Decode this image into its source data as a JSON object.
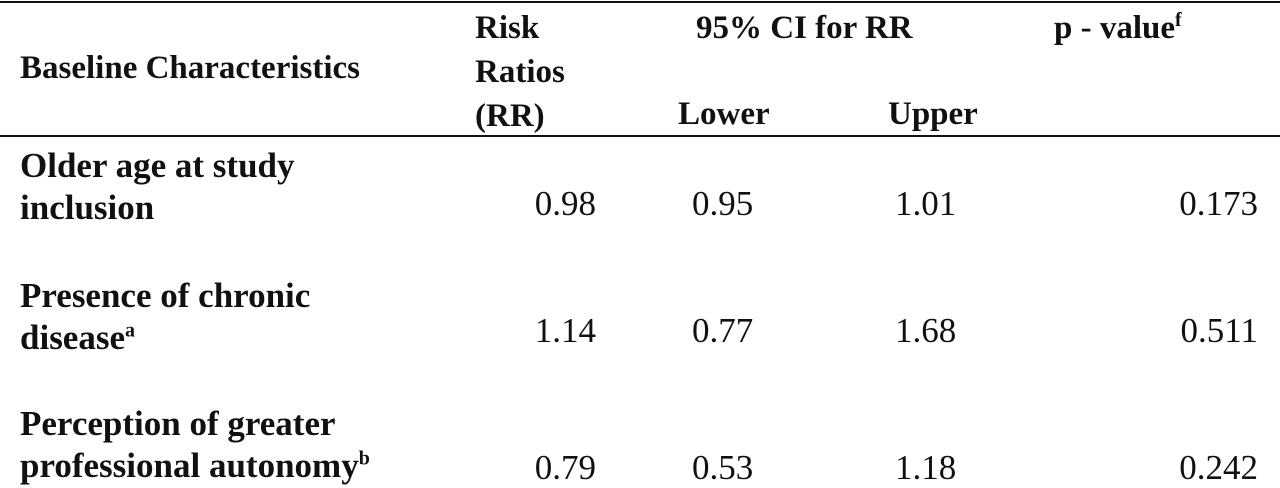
{
  "table": {
    "headers": {
      "baseline": "Baseline Characteristics",
      "rr": [
        "Risk",
        "Ratios",
        "(RR)"
      ],
      "ci_group": "95% CI for RR",
      "lower": "Lower",
      "upper": "Upper",
      "pvalue": "p - value",
      "pvalue_sup": "f"
    },
    "rows": [
      {
        "label_line1": "Older age at study",
        "label_line2": "inclusion",
        "label_sup": "",
        "rr": "0.98",
        "lower": "0.95",
        "upper": "1.01",
        "p": "0.173"
      },
      {
        "label_line1": "Presence of chronic",
        "label_line2": "disease",
        "label_sup": "a",
        "rr": "1.14",
        "lower": "0.77",
        "upper": "1.68",
        "p": "0.511"
      },
      {
        "label_line1": "Perception of greater",
        "label_line2": "professional autonomy",
        "label_sup": "b",
        "rr": "0.79",
        "lower": "0.53",
        "upper": "1.18",
        "p": "0.242"
      }
    ]
  }
}
